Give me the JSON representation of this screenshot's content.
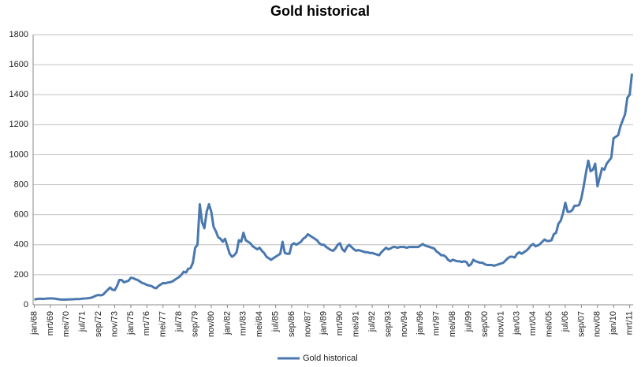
{
  "chart_data": {
    "type": "line",
    "title": "Gold historical",
    "categories": [
      "jan/68",
      null,
      null,
      null,
      null,
      null,
      null,
      "mrt/69",
      null,
      null,
      null,
      null,
      null,
      null,
      "mei/70",
      null,
      null,
      null,
      null,
      null,
      null,
      "jul/71",
      null,
      null,
      null,
      null,
      null,
      null,
      "sep/72",
      null,
      null,
      null,
      null,
      null,
      null,
      "nov/73",
      null,
      null,
      null,
      null,
      null,
      null,
      "jan/75",
      null,
      null,
      null,
      null,
      null,
      null,
      "mrt/76",
      null,
      null,
      null,
      null,
      null,
      null,
      "mei/77",
      null,
      null,
      null,
      null,
      null,
      null,
      "jul/78",
      null,
      null,
      null,
      null,
      null,
      null,
      "sep/79",
      null,
      null,
      null,
      null,
      null,
      null,
      "nov/80",
      null,
      null,
      null,
      null,
      null,
      null,
      "jan/82",
      null,
      null,
      null,
      null,
      null,
      null,
      "mrt/83",
      null,
      null,
      null,
      null,
      null,
      null,
      "mei/84",
      null,
      null,
      null,
      null,
      null,
      null,
      "jul/85",
      null,
      null,
      null,
      null,
      null,
      null,
      "sep/86",
      null,
      null,
      null,
      null,
      null,
      null,
      "nov/87",
      null,
      null,
      null,
      null,
      null,
      null,
      "jan/89",
      null,
      null,
      null,
      null,
      null,
      null,
      "mrt/90",
      null,
      null,
      null,
      null,
      null,
      null,
      "mei/91",
      null,
      null,
      null,
      null,
      null,
      null,
      "jul/92",
      null,
      null,
      null,
      null,
      null,
      null,
      "sep/93",
      null,
      null,
      null,
      null,
      null,
      null,
      "nov/94",
      null,
      null,
      null,
      null,
      null,
      null,
      "jan/96",
      null,
      null,
      null,
      null,
      null,
      null,
      "mrt/97",
      null,
      null,
      null,
      null,
      null,
      null,
      "mei/98",
      null,
      null,
      null,
      null,
      null,
      null,
      "jul/99",
      null,
      null,
      null,
      null,
      null,
      null,
      "sep/00",
      null,
      null,
      null,
      null,
      null,
      null,
      "nov/01",
      null,
      null,
      null,
      null,
      null,
      null,
      "jan/03",
      null,
      null,
      null,
      null,
      null,
      null,
      "mrt/04",
      null,
      null,
      null,
      null,
      null,
      null,
      "mei/05",
      null,
      null,
      null,
      null,
      null,
      null,
      "jul/06",
      null,
      null,
      null,
      null,
      null,
      null,
      "sep/07",
      null,
      null,
      null,
      null,
      null,
      null,
      "nov/08",
      null,
      null,
      null,
      null,
      null,
      null,
      "jan/10",
      null,
      null,
      null,
      null,
      null,
      null,
      "mrt/11",
      null
    ],
    "series": [
      {
        "name": "Gold historical",
        "color": "#4a78ae",
        "values": [
          35,
          38,
          40,
          40,
          39,
          41,
          42,
          43,
          42,
          41,
          38,
          36,
          35,
          35,
          35,
          36,
          36,
          37,
          38,
          38,
          39,
          41,
          42,
          43,
          45,
          48,
          55,
          62,
          65,
          63,
          68,
          85,
          100,
          115,
          100,
          98,
          125,
          165,
          165,
          150,
          155,
          160,
          180,
          178,
          170,
          165,
          155,
          145,
          140,
          132,
          128,
          125,
          115,
          110,
          125,
          135,
          145,
          143,
          148,
          150,
          155,
          165,
          175,
          185,
          200,
          220,
          215,
          240,
          245,
          280,
          380,
          400,
          670,
          550,
          510,
          620,
          670,
          620,
          520,
          490,
          450,
          440,
          420,
          440,
          390,
          340,
          320,
          330,
          350,
          430,
          420,
          480,
          430,
          420,
          410,
          390,
          380,
          370,
          380,
          360,
          345,
          320,
          310,
          300,
          310,
          320,
          330,
          340,
          420,
          345,
          340,
          340,
          400,
          410,
          400,
          410,
          420,
          440,
          450,
          470,
          460,
          450,
          440,
          430,
          410,
          400,
          400,
          385,
          375,
          365,
          360,
          375,
          400,
          410,
          370,
          355,
          385,
          400,
          385,
          370,
          360,
          365,
          360,
          355,
          350,
          350,
          345,
          345,
          340,
          335,
          330,
          350,
          365,
          380,
          370,
          375,
          385,
          385,
          380,
          385,
          385,
          385,
          380,
          385,
          385,
          385,
          385,
          385,
          395,
          405,
          395,
          390,
          385,
          380,
          375,
          355,
          345,
          330,
          330,
          320,
          300,
          290,
          300,
          295,
          290,
          290,
          285,
          290,
          285,
          260,
          270,
          300,
          290,
          285,
          280,
          280,
          270,
          265,
          265,
          265,
          260,
          265,
          270,
          275,
          280,
          295,
          310,
          320,
          320,
          315,
          340,
          350,
          340,
          350,
          360,
          375,
          395,
          405,
          390,
          395,
          405,
          420,
          435,
          425,
          425,
          430,
          470,
          480,
          540,
          560,
          610,
          680,
          620,
          620,
          630,
          660,
          660,
          665,
          710,
          790,
          880,
          960,
          890,
          900,
          940,
          790,
          850,
          910,
          900,
          940,
          960,
          980,
          1110,
          1120,
          1130,
          1190,
          1230,
          1270,
          1380,
          1400,
          1540
        ]
      }
    ],
    "ylim": [
      0,
      1800
    ],
    "yticks": [
      0,
      200,
      400,
      600,
      800,
      1000,
      1200,
      1400,
      1600,
      1800
    ],
    "grid": true,
    "legend": "bottom"
  }
}
